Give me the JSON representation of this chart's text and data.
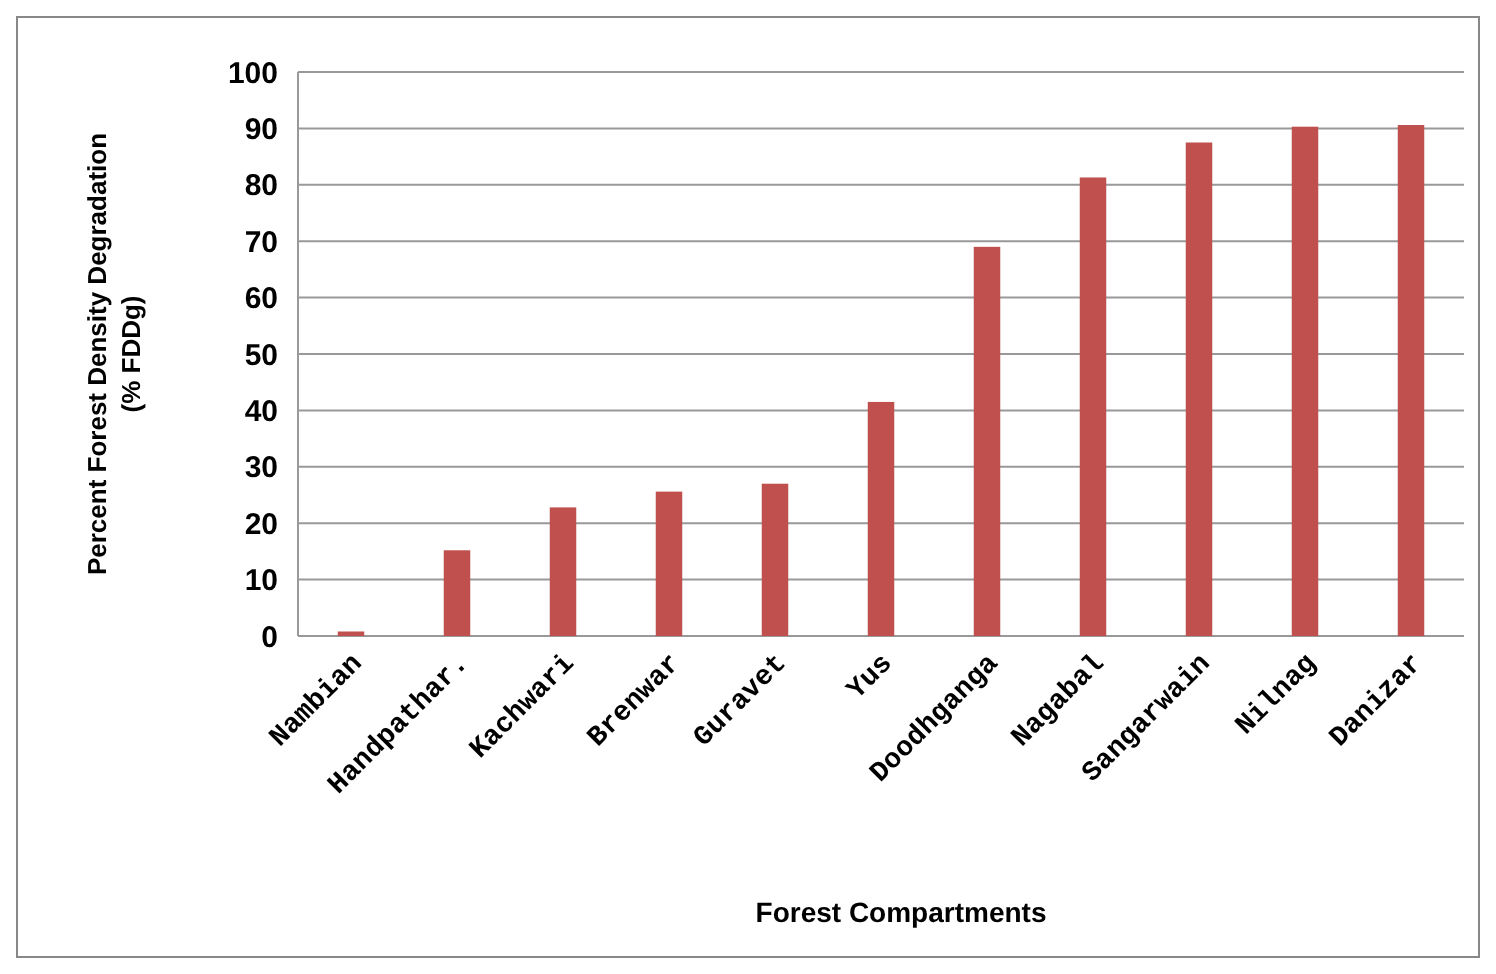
{
  "chart_data": {
    "type": "bar",
    "xlabel": "Forest Compartments",
    "ylabel": "Percent Forest Density Degradation (% FDDg)",
    "categories": [
      "Nambian",
      "Handpathar.",
      "Kachwari",
      "Brenwar",
      "Guravet",
      "Yus",
      "Doodhganga",
      "Nagabal",
      "Sangarwain",
      "Nilnag",
      "Danizar"
    ],
    "values": [
      0.8,
      15.2,
      22.8,
      25.6,
      27,
      41.5,
      69,
      81.3,
      87.5,
      90.3,
      90.6
    ],
    "color": "#c0504d",
    "ylim": [
      0,
      100
    ],
    "yticks": [
      0,
      10,
      20,
      30,
      40,
      50,
      60,
      70,
      80,
      90,
      100
    ],
    "grid": "y"
  }
}
